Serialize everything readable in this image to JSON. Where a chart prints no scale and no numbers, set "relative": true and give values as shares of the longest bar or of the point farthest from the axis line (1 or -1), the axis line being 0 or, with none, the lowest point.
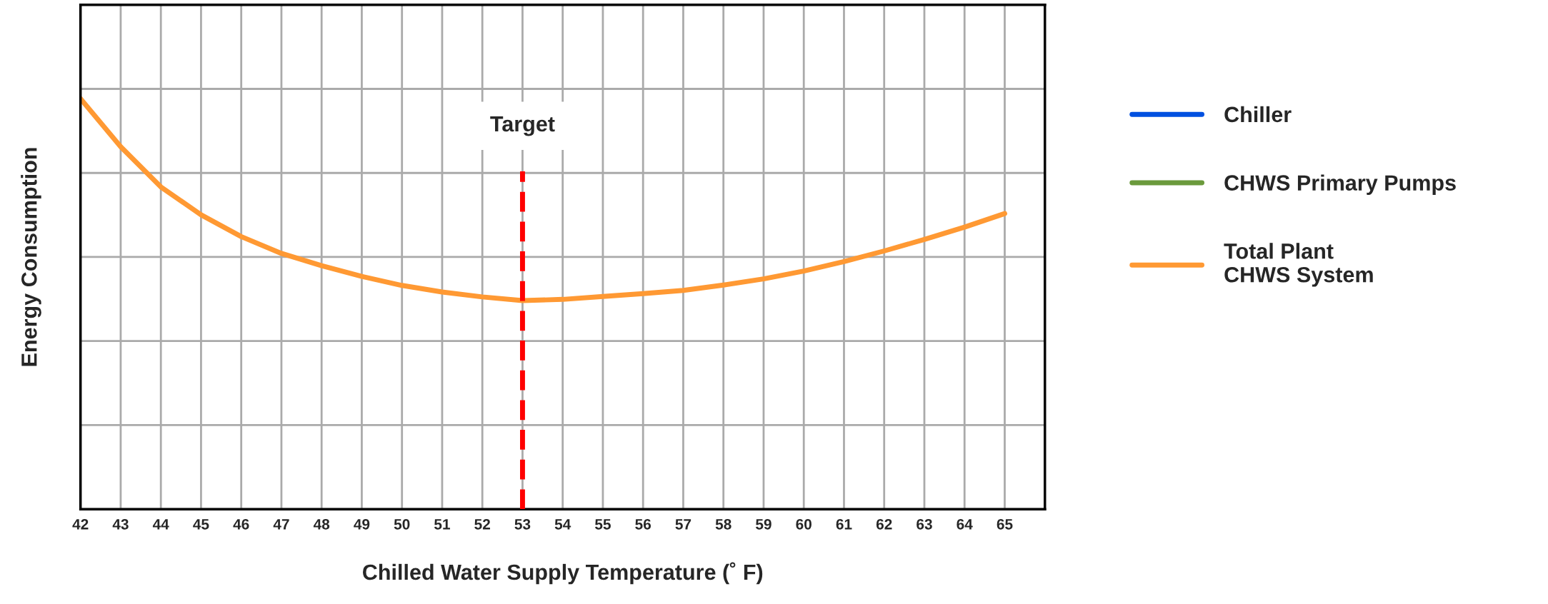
{
  "chart_data": {
    "type": "line",
    "xlabel": "Chilled Water Supply Temperature (˚ F)",
    "ylabel": "Energy Consumption",
    "relative": true,
    "x": [
      42,
      43,
      44,
      45,
      46,
      47,
      48,
      49,
      50,
      51,
      52,
      53,
      54,
      55,
      56,
      57,
      58,
      59,
      60,
      61,
      62,
      63,
      64,
      65
    ],
    "xlim": [
      42,
      66
    ],
    "xticks": [
      42,
      43,
      44,
      45,
      46,
      47,
      48,
      49,
      50,
      51,
      52,
      53,
      54,
      55,
      56,
      57,
      58,
      59,
      60,
      61,
      62,
      63,
      64,
      65
    ],
    "series": [
      {
        "name": "Chiller",
        "color": "#0050e0",
        "values": [
          null,
          null,
          null,
          null,
          null,
          null,
          null,
          null,
          null,
          null,
          null,
          null,
          null,
          null,
          null,
          null,
          null,
          null,
          null,
          null,
          null,
          null,
          null,
          null
        ]
      },
      {
        "name": "CHWS Primary Pumps",
        "color": "#6b9a3c",
        "values": [
          null,
          null,
          null,
          null,
          null,
          null,
          null,
          null,
          null,
          null,
          null,
          null,
          null,
          null,
          null,
          null,
          null,
          null,
          null,
          null,
          null,
          null,
          null,
          null
        ]
      },
      {
        "name": "Total Plant\nCHWS System",
        "color": "#ff9933",
        "values": [
          1,
          0.883,
          0.785,
          0.717,
          0.664,
          0.623,
          0.593,
          0.567,
          0.545,
          0.529,
          0.517,
          0.508,
          0.511,
          0.518,
          0.525,
          0.533,
          0.546,
          0.561,
          0.58,
          0.603,
          0.629,
          0.657,
          0.687,
          0.72
        ]
      }
    ],
    "ref_lines": [
      {
        "axis": "x",
        "value": 53,
        "label": "Target",
        "color": "#ff0000",
        "line_style": "dashed"
      }
    ],
    "grid": true,
    "legend": "right",
    "line_style": "solid",
    "marker": "none"
  }
}
